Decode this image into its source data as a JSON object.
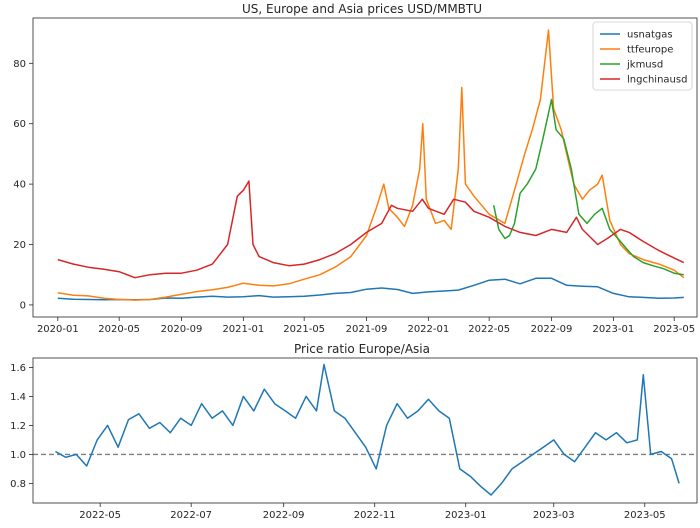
{
  "chart_data": [
    {
      "type": "line",
      "title": "US, Europe and Asia prices USD/MMBTU",
      "xlabel": "",
      "ylabel": "",
      "grid": false,
      "legend_position": "top-right",
      "x_ticks": [
        "2020-01",
        "2020-05",
        "2020-09",
        "2021-01",
        "2021-05",
        "2021-09",
        "2022-01",
        "2022-05",
        "2022-09",
        "2023-01",
        "2023-05"
      ],
      "y_ticks": [
        "0",
        "20",
        "40",
        "60",
        "80"
      ],
      "xlim": [
        "2019-11-13",
        "2023-06-15"
      ],
      "ylim": [
        -4,
        95
      ],
      "series": [
        {
          "name": "usnatgas",
          "color": "#1f77b4",
          "points": [
            [
              "2020-01-01",
              2.2
            ],
            [
              "2020-02-01",
              1.9
            ],
            [
              "2020-03-01",
              1.8
            ],
            [
              "2020-04-01",
              1.7
            ],
            [
              "2020-05-01",
              1.8
            ],
            [
              "2020-06-01",
              1.7
            ],
            [
              "2020-07-01",
              1.8
            ],
            [
              "2020-08-01",
              2.3
            ],
            [
              "2020-09-01",
              2.2
            ],
            [
              "2020-10-01",
              2.6
            ],
            [
              "2020-11-01",
              2.9
            ],
            [
              "2020-12-01",
              2.6
            ],
            [
              "2021-01-01",
              2.7
            ],
            [
              "2021-02-01",
              3.1
            ],
            [
              "2021-03-01",
              2.6
            ],
            [
              "2021-04-01",
              2.7
            ],
            [
              "2021-05-01",
              2.9
            ],
            [
              "2021-06-01",
              3.3
            ],
            [
              "2021-07-01",
              3.8
            ],
            [
              "2021-08-01",
              4.1
            ],
            [
              "2021-09-01",
              5.2
            ],
            [
              "2021-10-01",
              5.6
            ],
            [
              "2021-11-01",
              5.1
            ],
            [
              "2021-12-01",
              3.8
            ],
            [
              "2022-01-01",
              4.3
            ],
            [
              "2022-02-01",
              4.6
            ],
            [
              "2022-03-01",
              4.9
            ],
            [
              "2022-04-01",
              6.5
            ],
            [
              "2022-05-01",
              8.2
            ],
            [
              "2022-06-01",
              8.5
            ],
            [
              "2022-07-01",
              7.0
            ],
            [
              "2022-08-01",
              8.8
            ],
            [
              "2022-09-01",
              8.8
            ],
            [
              "2022-10-01",
              6.5
            ],
            [
              "2022-11-01",
              6.2
            ],
            [
              "2022-12-01",
              6.0
            ],
            [
              "2023-01-01",
              3.8
            ],
            [
              "2023-02-01",
              2.7
            ],
            [
              "2023-03-01",
              2.5
            ],
            [
              "2023-04-01",
              2.2
            ],
            [
              "2023-05-01",
              2.3
            ],
            [
              "2023-05-20",
              2.5
            ]
          ]
        },
        {
          "name": "ttfeurope",
          "color": "#ff7f0e",
          "points": [
            [
              "2020-01-01",
              4.0
            ],
            [
              "2020-02-01",
              3.2
            ],
            [
              "2020-03-01",
              3.0
            ],
            [
              "2020-04-01",
              2.2
            ],
            [
              "2020-05-01",
              1.8
            ],
            [
              "2020-06-01",
              1.6
            ],
            [
              "2020-07-01",
              1.8
            ],
            [
              "2020-08-01",
              2.6
            ],
            [
              "2020-09-01",
              3.5
            ],
            [
              "2020-10-01",
              4.4
            ],
            [
              "2020-11-01",
              5.0
            ],
            [
              "2020-12-01",
              5.8
            ],
            [
              "2021-01-01",
              7.2
            ],
            [
              "2021-02-01",
              6.5
            ],
            [
              "2021-03-01",
              6.3
            ],
            [
              "2021-04-01",
              7.0
            ],
            [
              "2021-05-01",
              8.5
            ],
            [
              "2021-06-01",
              10.0
            ],
            [
              "2021-07-01",
              12.5
            ],
            [
              "2021-08-01",
              16.0
            ],
            [
              "2021-09-01",
              23.0
            ],
            [
              "2021-09-20",
              32.0
            ],
            [
              "2021-10-05",
              40.0
            ],
            [
              "2021-10-15",
              32.0
            ],
            [
              "2021-11-01",
              29.0
            ],
            [
              "2021-11-15",
              26.0
            ],
            [
              "2021-12-01",
              33.0
            ],
            [
              "2021-12-15",
              45.0
            ],
            [
              "2021-12-21",
              60.0
            ],
            [
              "2021-12-28",
              35.0
            ],
            [
              "2022-01-15",
              27.0
            ],
            [
              "2022-02-01",
              28.0
            ],
            [
              "2022-02-15",
              25.0
            ],
            [
              "2022-03-01",
              45.0
            ],
            [
              "2022-03-08",
              72.0
            ],
            [
              "2022-03-15",
              40.0
            ],
            [
              "2022-04-01",
              36.0
            ],
            [
              "2022-05-01",
              30.0
            ],
            [
              "2022-06-01",
              27.0
            ],
            [
              "2022-06-20",
              38.0
            ],
            [
              "2022-07-10",
              50.0
            ],
            [
              "2022-07-25",
              58.0
            ],
            [
              "2022-08-10",
              68.0
            ],
            [
              "2022-08-26",
              91.0
            ],
            [
              "2022-09-05",
              65.0
            ],
            [
              "2022-09-20",
              58.0
            ],
            [
              "2022-10-01",
              50.0
            ],
            [
              "2022-10-15",
              40.0
            ],
            [
              "2022-11-01",
              35.0
            ],
            [
              "2022-11-15",
              38.0
            ],
            [
              "2022-12-01",
              40.0
            ],
            [
              "2022-12-10",
              43.0
            ],
            [
              "2022-12-25",
              28.0
            ],
            [
              "2023-01-15",
              20.0
            ],
            [
              "2023-02-01",
              17.0
            ],
            [
              "2023-03-01",
              15.0
            ],
            [
              "2023-04-01",
              13.5
            ],
            [
              "2023-05-01",
              11.5
            ],
            [
              "2023-05-20",
              9.0
            ]
          ]
        },
        {
          "name": "jkmusd",
          "color": "#2ca02c",
          "points": [
            [
              "2022-05-10",
              33.0
            ],
            [
              "2022-05-20",
              25.0
            ],
            [
              "2022-06-01",
              22.0
            ],
            [
              "2022-06-10",
              23.0
            ],
            [
              "2022-06-20",
              27.0
            ],
            [
              "2022-07-01",
              37.0
            ],
            [
              "2022-07-15",
              40.0
            ],
            [
              "2022-08-01",
              45.0
            ],
            [
              "2022-08-15",
              55.0
            ],
            [
              "2022-09-01",
              68.0
            ],
            [
              "2022-09-10",
              58.0
            ],
            [
              "2022-09-25",
              55.0
            ],
            [
              "2022-10-10",
              45.0
            ],
            [
              "2022-10-25",
              30.0
            ],
            [
              "2022-11-10",
              27.0
            ],
            [
              "2022-11-25",
              30.0
            ],
            [
              "2022-12-10",
              32.0
            ],
            [
              "2022-12-25",
              25.0
            ],
            [
              "2023-01-10",
              22.0
            ],
            [
              "2023-01-25",
              19.0
            ],
            [
              "2023-02-10",
              16.0
            ],
            [
              "2023-03-01",
              14.0
            ],
            [
              "2023-03-20",
              13.0
            ],
            [
              "2023-04-10",
              12.0
            ],
            [
              "2023-05-01",
              10.5
            ],
            [
              "2023-05-20",
              10.0
            ]
          ]
        },
        {
          "name": "lngchinausd",
          "color": "#d62728",
          "points": [
            [
              "2020-01-01",
              15.0
            ],
            [
              "2020-02-01",
              13.5
            ],
            [
              "2020-03-01",
              12.5
            ],
            [
              "2020-04-01",
              11.8
            ],
            [
              "2020-05-01",
              11.0
            ],
            [
              "2020-06-01",
              9.0
            ],
            [
              "2020-07-01",
              10.0
            ],
            [
              "2020-08-01",
              10.5
            ],
            [
              "2020-09-01",
              10.5
            ],
            [
              "2020-10-01",
              11.5
            ],
            [
              "2020-11-01",
              13.5
            ],
            [
              "2020-12-01",
              20.0
            ],
            [
              "2020-12-20",
              36.0
            ],
            [
              "2021-01-01",
              38.0
            ],
            [
              "2021-01-12",
              41.0
            ],
            [
              "2021-01-20",
              20.0
            ],
            [
              "2021-02-01",
              16.0
            ],
            [
              "2021-03-01",
              14.0
            ],
            [
              "2021-04-01",
              13.0
            ],
            [
              "2021-05-01",
              13.5
            ],
            [
              "2021-06-01",
              15.0
            ],
            [
              "2021-07-01",
              17.0
            ],
            [
              "2021-08-01",
              20.0
            ],
            [
              "2021-09-01",
              24.0
            ],
            [
              "2021-10-01",
              27.0
            ],
            [
              "2021-10-20",
              33.0
            ],
            [
              "2021-11-01",
              32.0
            ],
            [
              "2021-12-01",
              31.0
            ],
            [
              "2021-12-20",
              35.0
            ],
            [
              "2022-01-01",
              32.0
            ],
            [
              "2022-02-01",
              30.0
            ],
            [
              "2022-02-20",
              35.0
            ],
            [
              "2022-03-15",
              34.0
            ],
            [
              "2022-04-01",
              31.0
            ],
            [
              "2022-05-01",
              29.0
            ],
            [
              "2022-06-01",
              26.0
            ],
            [
              "2022-07-01",
              24.0
            ],
            [
              "2022-08-01",
              23.0
            ],
            [
              "2022-09-01",
              25.0
            ],
            [
              "2022-10-01",
              24.0
            ],
            [
              "2022-10-20",
              29.0
            ],
            [
              "2022-11-01",
              25.0
            ],
            [
              "2022-12-01",
              20.0
            ],
            [
              "2022-12-20",
              22.0
            ],
            [
              "2023-01-15",
              25.0
            ],
            [
              "2023-02-01",
              24.0
            ],
            [
              "2023-03-01",
              21.0
            ],
            [
              "2023-04-01",
              18.0
            ],
            [
              "2023-05-01",
              15.5
            ],
            [
              "2023-05-20",
              14.0
            ]
          ]
        }
      ]
    },
    {
      "type": "line",
      "title": "Price ratio Europe/Asia",
      "xlabel": "",
      "ylabel": "",
      "grid": false,
      "x_ticks": [
        "2022-05",
        "2022-07",
        "2022-09",
        "2022-11",
        "2023-01",
        "2023-03",
        "2023-05"
      ],
      "y_ticks": [
        "0.8",
        "1.0",
        "1.2",
        "1.4",
        "1.6"
      ],
      "xlim": [
        "2022-03-17",
        "2023-06-05"
      ],
      "ylim": [
        0.665,
        1.665
      ],
      "reference_line": {
        "y": 1.0,
        "style": "dashed",
        "color": "#808080"
      },
      "series": [
        {
          "name": "",
          "color": "#1f77b4",
          "points": [
            [
              "2022-04-01",
              1.02
            ],
            [
              "2022-04-08",
              0.98
            ],
            [
              "2022-04-15",
              1.0
            ],
            [
              "2022-04-22",
              0.92
            ],
            [
              "2022-04-29",
              1.1
            ],
            [
              "2022-05-06",
              1.2
            ],
            [
              "2022-05-13",
              1.05
            ],
            [
              "2022-05-20",
              1.24
            ],
            [
              "2022-05-27",
              1.28
            ],
            [
              "2022-06-03",
              1.18
            ],
            [
              "2022-06-10",
              1.22
            ],
            [
              "2022-06-17",
              1.15
            ],
            [
              "2022-06-24",
              1.25
            ],
            [
              "2022-07-01",
              1.2
            ],
            [
              "2022-07-08",
              1.35
            ],
            [
              "2022-07-15",
              1.25
            ],
            [
              "2022-07-22",
              1.3
            ],
            [
              "2022-07-29",
              1.2
            ],
            [
              "2022-08-05",
              1.4
            ],
            [
              "2022-08-12",
              1.3
            ],
            [
              "2022-08-19",
              1.45
            ],
            [
              "2022-08-26",
              1.35
            ],
            [
              "2022-09-02",
              1.3
            ],
            [
              "2022-09-09",
              1.25
            ],
            [
              "2022-09-16",
              1.4
            ],
            [
              "2022-09-23",
              1.3
            ],
            [
              "2022-09-28",
              1.62
            ],
            [
              "2022-10-05",
              1.3
            ],
            [
              "2022-10-12",
              1.25
            ],
            [
              "2022-10-19",
              1.15
            ],
            [
              "2022-10-26",
              1.05
            ],
            [
              "2022-11-02",
              0.9
            ],
            [
              "2022-11-09",
              1.2
            ],
            [
              "2022-11-16",
              1.35
            ],
            [
              "2022-11-23",
              1.25
            ],
            [
              "2022-11-30",
              1.3
            ],
            [
              "2022-12-07",
              1.38
            ],
            [
              "2022-12-14",
              1.3
            ],
            [
              "2022-12-21",
              1.25
            ],
            [
              "2022-12-28",
              0.9
            ],
            [
              "2023-01-04",
              0.85
            ],
            [
              "2023-01-11",
              0.78
            ],
            [
              "2023-01-18",
              0.72
            ],
            [
              "2023-01-25",
              0.8
            ],
            [
              "2023-02-01",
              0.9
            ],
            [
              "2023-02-08",
              0.95
            ],
            [
              "2023-02-15",
              1.0
            ],
            [
              "2023-02-22",
              1.05
            ],
            [
              "2023-03-01",
              1.1
            ],
            [
              "2023-03-08",
              1.0
            ],
            [
              "2023-03-15",
              0.95
            ],
            [
              "2023-03-22",
              1.05
            ],
            [
              "2023-03-29",
              1.15
            ],
            [
              "2023-04-05",
              1.1
            ],
            [
              "2023-04-12",
              1.15
            ],
            [
              "2023-04-19",
              1.08
            ],
            [
              "2023-04-26",
              1.1
            ],
            [
              "2023-04-30",
              1.55
            ],
            [
              "2023-05-05",
              1.0
            ],
            [
              "2023-05-12",
              1.02
            ],
            [
              "2023-05-19",
              0.97
            ],
            [
              "2023-05-24",
              0.8
            ]
          ]
        }
      ]
    }
  ]
}
